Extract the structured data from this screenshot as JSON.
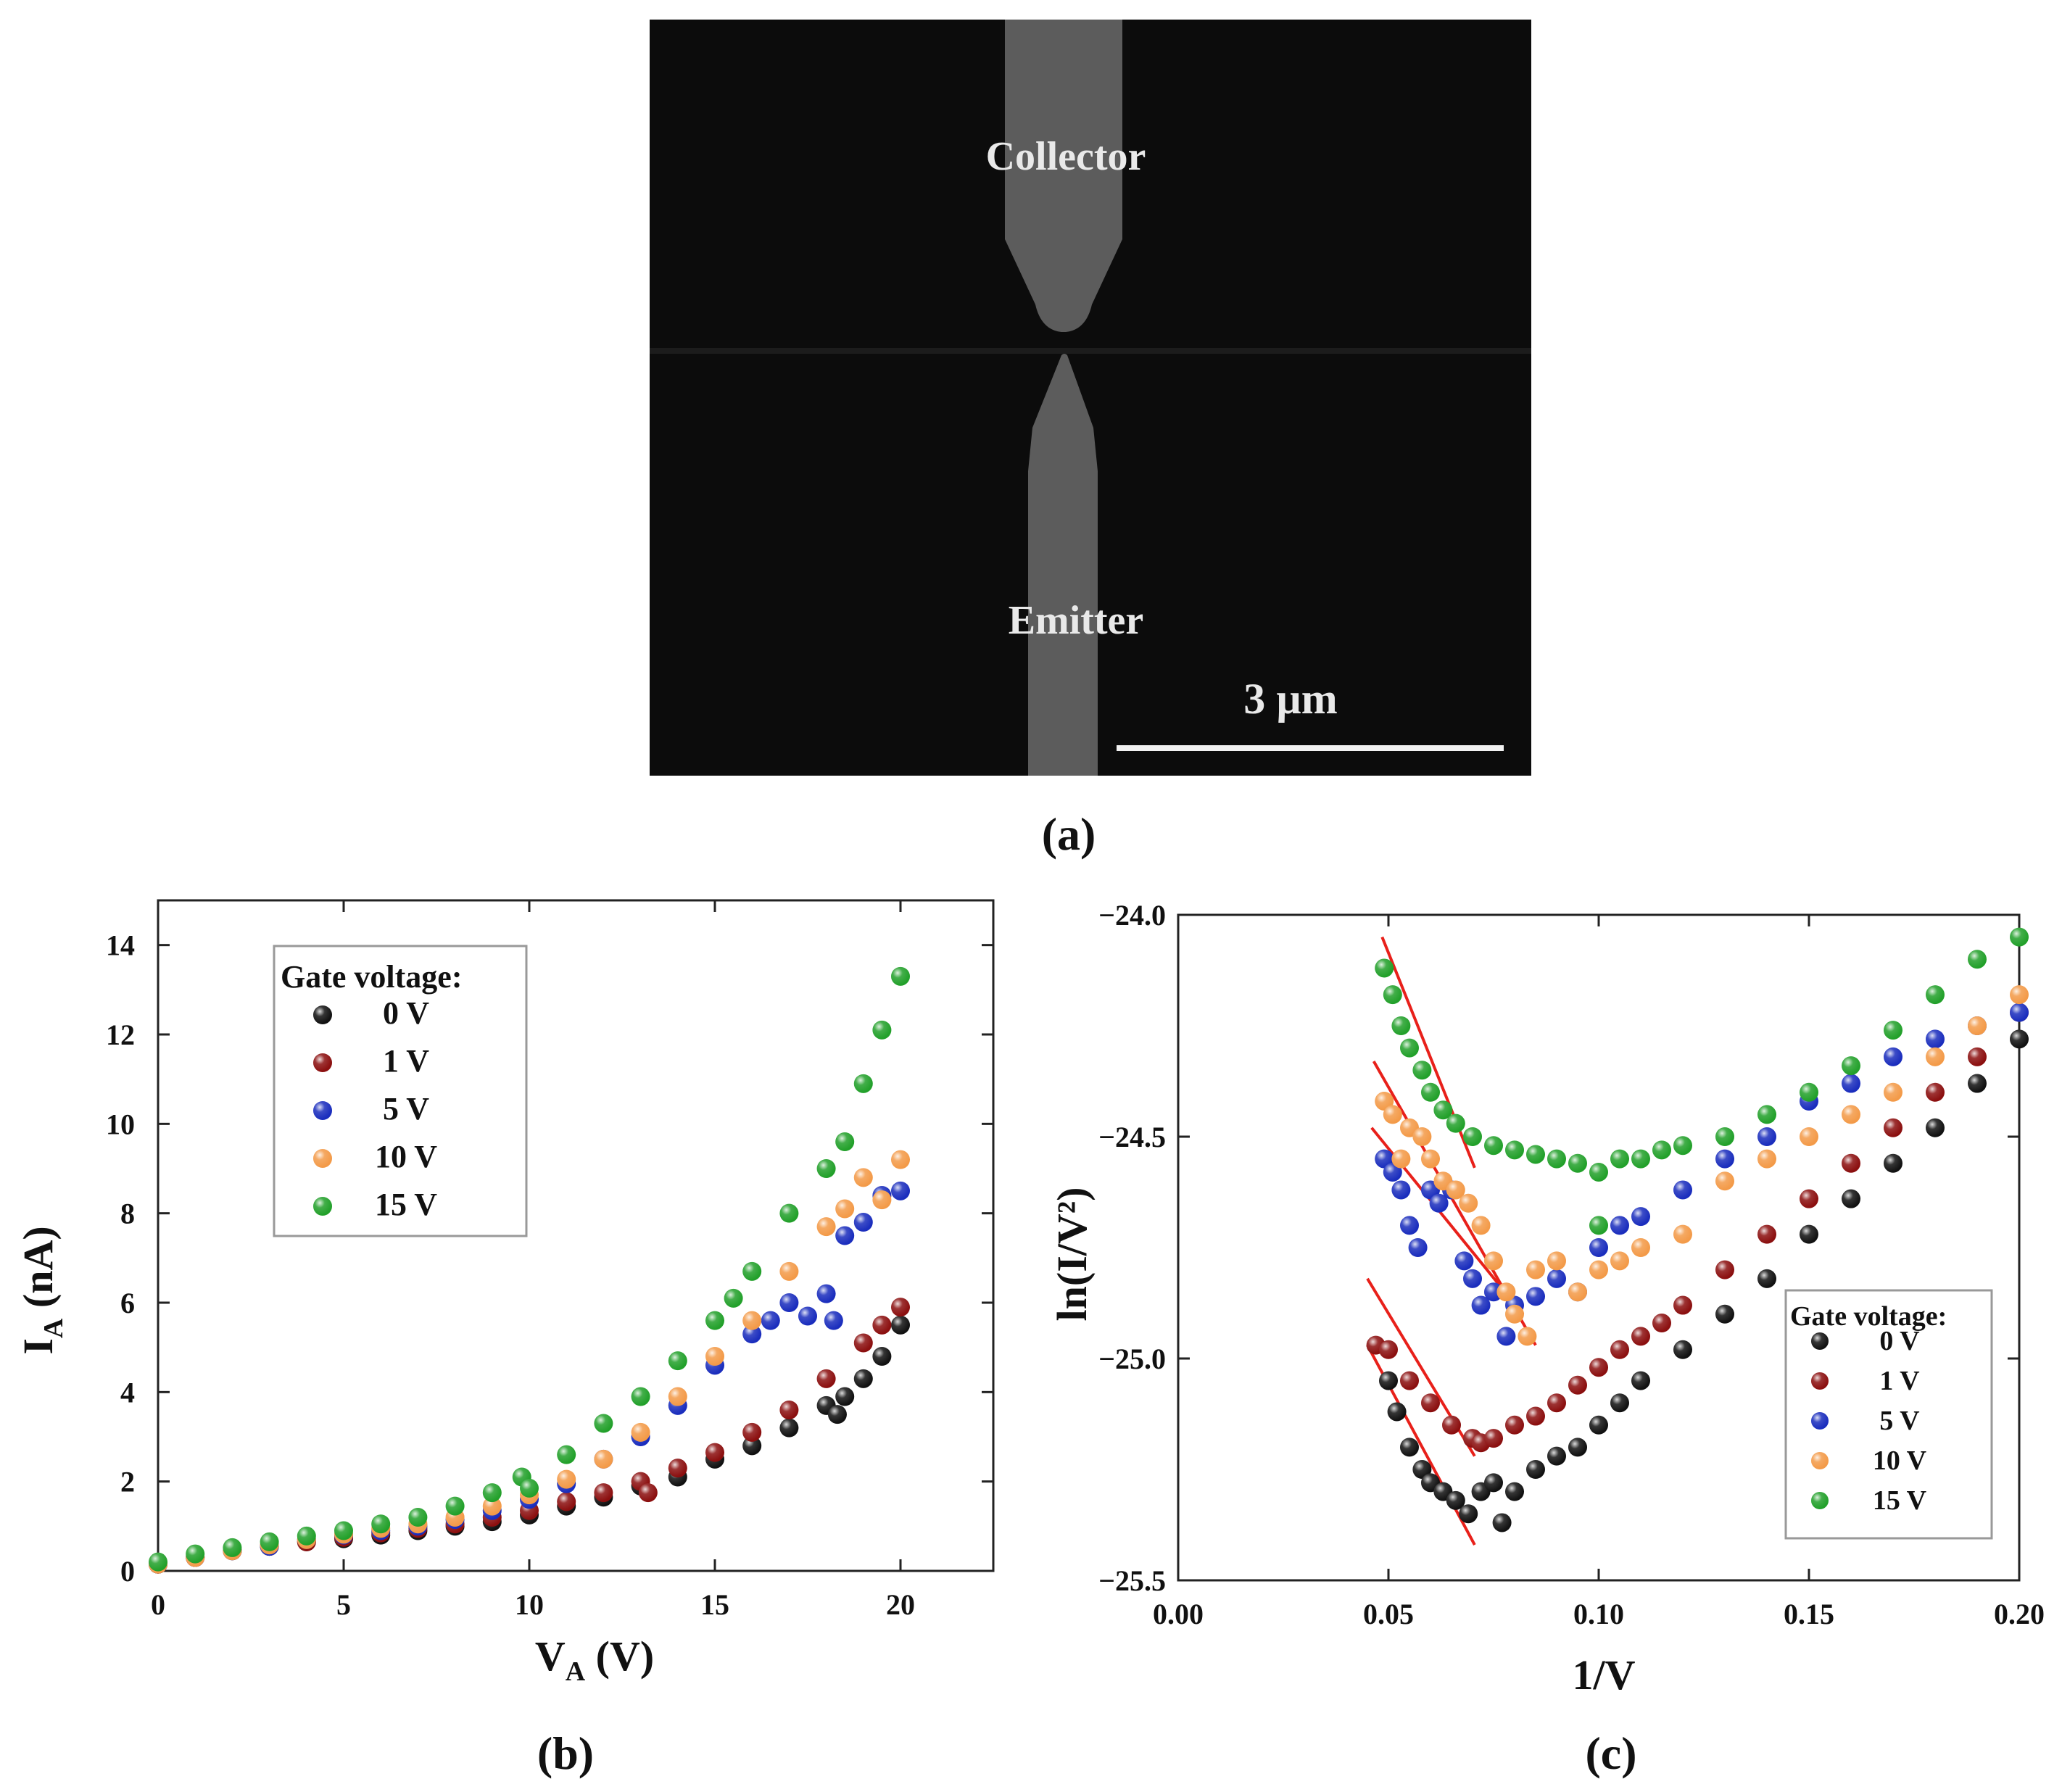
{
  "colors": {
    "g0": "#111111",
    "g1": "#8b0f0f",
    "g5": "#1a2dbd",
    "g10": "#f39a48",
    "g15": "#22a02a",
    "fit": "#e8201a",
    "sem_bg": "#0c0c0c",
    "sem_electrode": "#5c5c5c",
    "sem_text": "#e9e9e9"
  },
  "panel_a": {
    "label": "(a)",
    "collector_label": "Collector",
    "emitter_label": "Emitter",
    "scale_bar_label": "3 µm"
  },
  "panel_b_label": "(b)",
  "panel_c_label": "(c)",
  "chart_data": [
    {
      "id": "b",
      "type": "scatter",
      "title": "",
      "xlabel": "V",
      "xlabel_sub": "A",
      "xlabel_unit": "(V)",
      "ylabel": "I",
      "ylabel_sub": "A",
      "ylabel_unit": "(nA)",
      "xlim": [
        0,
        22.5
      ],
      "ylim": [
        0,
        15
      ],
      "xticks": [
        0,
        5,
        10,
        15,
        20
      ],
      "xtick_labels": [
        "0",
        "5",
        "10",
        "15",
        "20"
      ],
      "yticks": [
        0,
        2,
        4,
        6,
        8,
        10,
        12,
        14
      ],
      "ytick_labels": [
        "0",
        "2",
        "4",
        "6",
        "8",
        "10",
        "12",
        "14"
      ],
      "grid": false,
      "legend": {
        "title": "Gate voltage:",
        "placement": "top-left"
      },
      "series": [
        {
          "name": "0 V",
          "color_key": "g0",
          "x": [
            0,
            1,
            2,
            3,
            4,
            5,
            6,
            7,
            8,
            9,
            10,
            11,
            12,
            13,
            14,
            15,
            16,
            17,
            18,
            18.3,
            18.5,
            19,
            19.5,
            20
          ],
          "y": [
            0.15,
            0.3,
            0.45,
            0.55,
            0.65,
            0.72,
            0.8,
            0.9,
            1.0,
            1.1,
            1.25,
            1.45,
            1.65,
            1.9,
            2.1,
            2.5,
            2.8,
            3.2,
            3.7,
            3.5,
            3.9,
            4.3,
            4.8,
            5.5
          ]
        },
        {
          "name": "1 V",
          "color_key": "g1",
          "x": [
            0,
            1,
            2,
            3,
            4,
            5,
            6,
            7,
            8,
            9,
            10,
            11,
            12,
            13,
            13.2,
            14,
            15,
            16,
            17,
            18,
            19,
            19.5,
            20
          ],
          "y": [
            0.15,
            0.3,
            0.45,
            0.55,
            0.65,
            0.75,
            0.85,
            0.95,
            1.05,
            1.2,
            1.35,
            1.55,
            1.75,
            2.0,
            1.75,
            2.3,
            2.65,
            3.1,
            3.6,
            4.3,
            5.1,
            5.5,
            5.9
          ]
        },
        {
          "name": "5 V",
          "color_key": "g5",
          "x": [
            0,
            1,
            2,
            3,
            4,
            5,
            6,
            7,
            8,
            9,
            10,
            11,
            12,
            13,
            14,
            15,
            16,
            16.5,
            17,
            17.5,
            18,
            18.2,
            18.5,
            19,
            19.5,
            20
          ],
          "y": [
            0.15,
            0.3,
            0.45,
            0.55,
            0.7,
            0.8,
            0.9,
            1.0,
            1.15,
            1.35,
            1.6,
            1.95,
            2.5,
            3.0,
            3.7,
            4.6,
            5.3,
            5.6,
            6.0,
            5.7,
            6.2,
            5.6,
            7.5,
            7.8,
            8.4,
            8.5
          ]
        },
        {
          "name": "10 V",
          "color_key": "g10",
          "x": [
            0,
            1,
            2,
            3,
            4,
            5,
            6,
            7,
            8,
            9,
            10,
            11,
            12,
            13,
            14,
            15,
            16,
            17,
            18,
            18.5,
            19,
            19.5,
            20
          ],
          "y": [
            0.15,
            0.3,
            0.45,
            0.58,
            0.7,
            0.82,
            0.95,
            1.05,
            1.2,
            1.45,
            1.7,
            2.05,
            2.5,
            3.1,
            3.9,
            4.8,
            5.6,
            6.7,
            7.7,
            8.1,
            8.8,
            8.3,
            9.2
          ]
        },
        {
          "name": "15 V",
          "color_key": "g15",
          "x": [
            0,
            1,
            2,
            3,
            4,
            5,
            6,
            7,
            8,
            9,
            9.8,
            10,
            11,
            12,
            13,
            14,
            15,
            15.5,
            16,
            17,
            18,
            18.5,
            19,
            19.5,
            20
          ],
          "y": [
            0.2,
            0.38,
            0.52,
            0.65,
            0.78,
            0.9,
            1.05,
            1.2,
            1.45,
            1.75,
            2.1,
            1.85,
            2.6,
            3.3,
            3.9,
            4.7,
            5.6,
            6.1,
            6.7,
            8.0,
            9.0,
            9.6,
            10.9,
            12.1,
            13.3
          ]
        }
      ]
    },
    {
      "id": "c",
      "type": "scatter",
      "title": "",
      "xlabel": "1/V",
      "ylabel": "ln(I/V²)",
      "xlim": [
        0,
        0.2
      ],
      "ylim": [
        -25.5,
        -24.0
      ],
      "xticks": [
        0,
        0.05,
        0.1,
        0.15,
        0.2
      ],
      "xtick_labels": [
        "0.00",
        "0.05",
        "0.10",
        "0.15",
        "0.20"
      ],
      "yticks": [
        -24.0,
        -24.5,
        -25.0,
        -25.5
      ],
      "ytick_labels": [
        "−24.0",
        "−24.5",
        "−25.0",
        "−25.5"
      ],
      "grid": false,
      "legend": {
        "title": "Gate voltage:",
        "placement": "bottom-right"
      },
      "series": [
        {
          "name": "0 V",
          "color_key": "g0",
          "x": [
            0.05,
            0.052,
            0.055,
            0.058,
            0.06,
            0.063,
            0.066,
            0.069,
            0.072,
            0.075,
            0.077,
            0.08,
            0.085,
            0.09,
            0.095,
            0.1,
            0.105,
            0.11,
            0.12,
            0.13,
            0.14,
            0.15,
            0.16,
            0.17,
            0.18,
            0.19,
            0.2
          ],
          "y": [
            -25.05,
            -25.12,
            -25.2,
            -25.25,
            -25.28,
            -25.3,
            -25.32,
            -25.35,
            -25.3,
            -25.28,
            -25.37,
            -25.3,
            -25.25,
            -25.22,
            -25.2,
            -25.15,
            -25.1,
            -25.05,
            -24.98,
            -24.9,
            -24.82,
            -24.72,
            -24.64,
            -24.56,
            -24.48,
            -24.38,
            -24.28
          ]
        },
        {
          "name": "1 V",
          "color_key": "g1",
          "x": [
            0.047,
            0.05,
            0.055,
            0.06,
            0.065,
            0.07,
            0.072,
            0.075,
            0.08,
            0.085,
            0.09,
            0.095,
            0.1,
            0.105,
            0.11,
            0.115,
            0.12,
            0.13,
            0.14,
            0.15,
            0.16,
            0.17,
            0.18,
            0.19,
            0.2
          ],
          "y": [
            -24.97,
            -24.98,
            -25.05,
            -25.1,
            -25.15,
            -25.18,
            -25.19,
            -25.18,
            -25.15,
            -25.13,
            -25.1,
            -25.06,
            -25.02,
            -24.98,
            -24.95,
            -24.92,
            -24.88,
            -24.8,
            -24.72,
            -24.64,
            -24.56,
            -24.48,
            -24.4,
            -24.32,
            -24.22
          ]
        },
        {
          "name": "5 V",
          "color_key": "g5",
          "x": [
            0.049,
            0.051,
            0.053,
            0.055,
            0.057,
            0.06,
            0.062,
            0.065,
            0.068,
            0.07,
            0.072,
            0.075,
            0.078,
            0.08,
            0.085,
            0.09,
            0.095,
            0.1,
            0.105,
            0.11,
            0.12,
            0.13,
            0.14,
            0.15,
            0.16,
            0.17,
            0.18,
            0.19,
            0.2
          ],
          "y": [
            -24.55,
            -24.58,
            -24.62,
            -24.7,
            -24.75,
            -24.62,
            -24.65,
            -24.62,
            -24.78,
            -24.82,
            -24.88,
            -24.85,
            -24.95,
            -24.88,
            -24.86,
            -24.82,
            -24.85,
            -24.75,
            -24.7,
            -24.68,
            -24.62,
            -24.55,
            -24.5,
            -24.42,
            -24.38,
            -24.32,
            -24.28,
            -24.25,
            -24.22
          ]
        },
        {
          "name": "10 V",
          "color_key": "g10",
          "x": [
            0.049,
            0.051,
            0.053,
            0.055,
            0.058,
            0.06,
            0.063,
            0.066,
            0.069,
            0.072,
            0.075,
            0.078,
            0.08,
            0.083,
            0.085,
            0.09,
            0.095,
            0.1,
            0.105,
            0.11,
            0.12,
            0.13,
            0.14,
            0.15,
            0.16,
            0.17,
            0.18,
            0.19,
            0.2
          ],
          "y": [
            -24.42,
            -24.45,
            -24.55,
            -24.48,
            -24.5,
            -24.55,
            -24.6,
            -24.62,
            -24.65,
            -24.7,
            -24.78,
            -24.85,
            -24.9,
            -24.95,
            -24.8,
            -24.78,
            -24.85,
            -24.8,
            -24.78,
            -24.75,
            -24.72,
            -24.6,
            -24.55,
            -24.5,
            -24.45,
            -24.4,
            -24.32,
            -24.25,
            -24.18
          ]
        },
        {
          "name": "15 V",
          "color_key": "g15",
          "x": [
            0.049,
            0.051,
            0.053,
            0.055,
            0.058,
            0.06,
            0.063,
            0.066,
            0.07,
            0.075,
            0.08,
            0.085,
            0.09,
            0.095,
            0.1,
            0.1,
            0.105,
            0.11,
            0.115,
            0.12,
            0.13,
            0.14,
            0.15,
            0.16,
            0.17,
            0.18,
            0.19,
            0.2
          ],
          "y": [
            -24.12,
            -24.18,
            -24.25,
            -24.3,
            -24.35,
            -24.4,
            -24.44,
            -24.47,
            -24.5,
            -24.52,
            -24.53,
            -24.54,
            -24.55,
            -24.56,
            -24.58,
            -24.7,
            -24.55,
            -24.55,
            -24.53,
            -24.52,
            -24.5,
            -24.45,
            -24.4,
            -24.34,
            -24.26,
            -24.18,
            -24.1,
            -24.05
          ]
        }
      ],
      "fit_lines": [
        {
          "name": "0 V fit",
          "x": [
            0.045,
            0.0705
          ],
          "y": [
            -24.97,
            -25.42
          ]
        },
        {
          "name": "1 V fit",
          "x": [
            0.045,
            0.0705
          ],
          "y": [
            -24.82,
            -25.22
          ]
        },
        {
          "name": "5 V fit",
          "x": [
            0.046,
            0.082
          ],
          "y": [
            -24.48,
            -24.9
          ]
        },
        {
          "name": "10 V fit",
          "x": [
            0.0465,
            0.085
          ],
          "y": [
            -24.33,
            -24.97
          ]
        },
        {
          "name": "15 V fit",
          "x": [
            0.0485,
            0.0705
          ],
          "y": [
            -24.05,
            -24.57
          ]
        }
      ]
    }
  ]
}
